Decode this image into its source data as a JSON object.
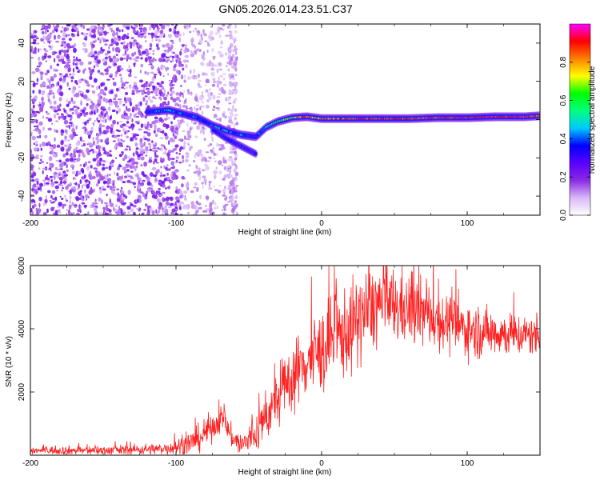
{
  "figure": {
    "title": "GN05.2026.014.23.51.C37"
  },
  "chart_data": [
    {
      "type": "heatmap",
      "name": "spectrogram",
      "xlabel": "Height of straight line (km)",
      "ylabel": "Frequency (Hz)",
      "xlim": [
        -200,
        150
      ],
      "ylim": [
        -50,
        50
      ],
      "xticks": [
        -200,
        -100,
        0,
        100
      ],
      "xtick_labels": [
        "-200",
        "-100",
        "0",
        "100"
      ],
      "yticks": [
        -40,
        -20,
        0,
        20,
        40
      ],
      "ytick_labels": [
        "-40",
        "-20",
        "0",
        "20",
        "40"
      ],
      "colorbar": {
        "label": "Normalized spectral amplitude",
        "range": [
          0.0,
          1.0
        ],
        "ticks": [
          0.0,
          0.2,
          0.4,
          0.6,
          0.8
        ],
        "tick_labels": [
          "0.0",
          "0.2",
          "0.4",
          "0.6",
          "0.8"
        ],
        "colormap": [
          "#ffffff",
          "#d8b8f8",
          "#8a2be2",
          "#5a00ff",
          "#0000ff",
          "#00c8ff",
          "#00ff80",
          "#00ff00",
          "#ffff00",
          "#ff8000",
          "#ff0000",
          "#ff00ff"
        ]
      },
      "ridge": [
        {
          "x": -120,
          "y": 4,
          "a": 0.3
        },
        {
          "x": -105,
          "y": 5,
          "a": 0.45
        },
        {
          "x": -95,
          "y": 3,
          "a": 0.4
        },
        {
          "x": -85,
          "y": 1,
          "a": 0.35
        },
        {
          "x": -75,
          "y": -3,
          "a": 0.4
        },
        {
          "x": -65,
          "y": -6,
          "a": 0.45
        },
        {
          "x": -55,
          "y": -8,
          "a": 0.4
        },
        {
          "x": -45,
          "y": -9,
          "a": 0.3
        },
        {
          "x": -38,
          "y": -4,
          "a": 0.5
        },
        {
          "x": -30,
          "y": -1,
          "a": 0.6
        },
        {
          "x": -20,
          "y": 1,
          "a": 0.75
        },
        {
          "x": -10,
          "y": 1.5,
          "a": 0.85
        },
        {
          "x": 0,
          "y": 0.5,
          "a": 0.8
        },
        {
          "x": 20,
          "y": 0.5,
          "a": 0.85
        },
        {
          "x": 40,
          "y": 0.5,
          "a": 0.9
        },
        {
          "x": 60,
          "y": 0.5,
          "a": 0.85
        },
        {
          "x": 80,
          "y": 1,
          "a": 0.9
        },
        {
          "x": 100,
          "y": 1,
          "a": 0.9
        },
        {
          "x": 120,
          "y": 1.5,
          "a": 0.9
        },
        {
          "x": 140,
          "y": 1.5,
          "a": 0.9
        },
        {
          "x": 150,
          "y": 2,
          "a": 0.85
        }
      ],
      "lower_branch": [
        {
          "x": -75,
          "y": -5,
          "a": 0.35
        },
        {
          "x": -65,
          "y": -10,
          "a": 0.3
        },
        {
          "x": -55,
          "y": -14,
          "a": 0.25
        },
        {
          "x": -45,
          "y": -18,
          "a": 0.2
        }
      ]
    },
    {
      "type": "line",
      "name": "snr",
      "xlabel": "Height of straight line (km)",
      "ylabel": "SNR (10 * v/v)",
      "xlim": [
        -200,
        150
      ],
      "ylim": [
        0,
        6000
      ],
      "xticks": [
        -200,
        -100,
        0,
        100
      ],
      "xtick_labels": [
        "-200",
        "-100",
        "0",
        "100"
      ],
      "yticks": [
        2000,
        4000,
        6000
      ],
      "ytick_labels": [
        "2000",
        "4000",
        "6000"
      ],
      "color": "#ff2020",
      "envelope": {
        "x": [
          -200,
          -150,
          -110,
          -95,
          -85,
          -75,
          -68,
          -62,
          -55,
          -45,
          -38,
          -30,
          -20,
          -10,
          0,
          10,
          20,
          30,
          40,
          50,
          60,
          70,
          80,
          90,
          100,
          110,
          120,
          130,
          140,
          150
        ],
        "y": [
          150,
          150,
          200,
          300,
          500,
          900,
          1200,
          600,
          300,
          700,
          1200,
          1800,
          2500,
          3000,
          3300,
          3700,
          4000,
          4500,
          4800,
          4700,
          4600,
          4500,
          4300,
          4100,
          4000,
          3900,
          3900,
          3800,
          3800,
          3800
        ]
      },
      "noise": {
        "x": [
          -200,
          -110,
          -80,
          -60,
          -40,
          -20,
          0,
          20,
          40,
          80,
          150
        ],
        "amp": [
          100,
          150,
          400,
          300,
          600,
          900,
          1100,
          1200,
          1100,
          800,
          500
        ]
      }
    }
  ]
}
